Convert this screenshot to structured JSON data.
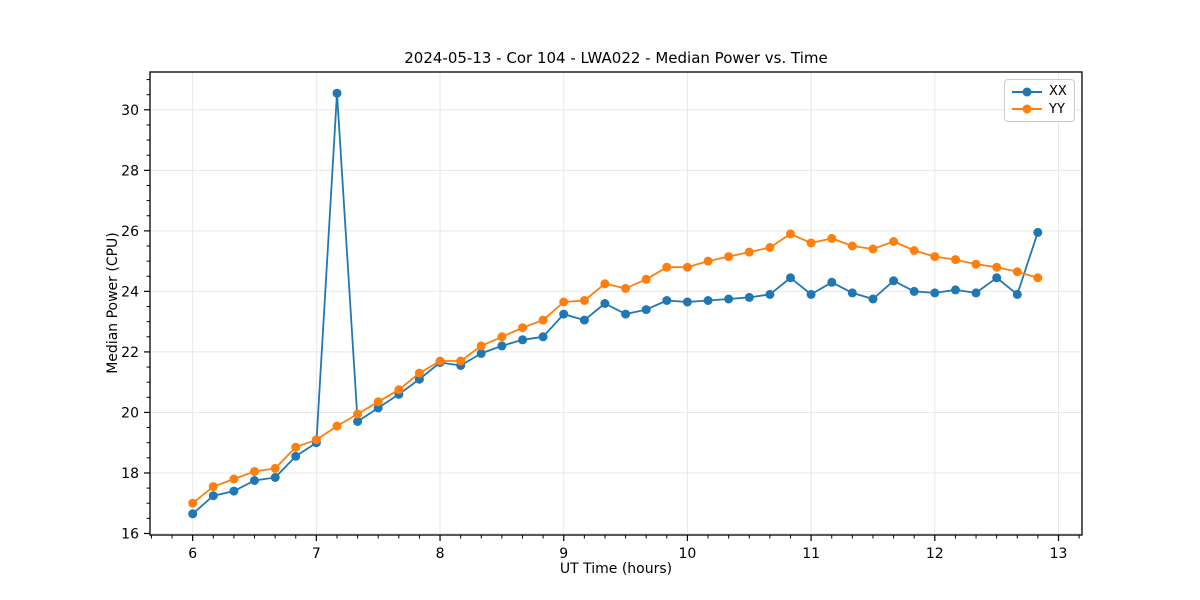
{
  "chart_data": {
    "type": "line",
    "title": "2024-05-13 - Cor 104 - LWA022 - Median Power vs. Time",
    "xlabel": "UT Time (hours)",
    "ylabel": "Median Power (CPU)",
    "xlim": [
      5.655,
      13.19
    ],
    "ylim": [
      15.95,
      31.25
    ],
    "x_major_ticks": [
      6,
      7,
      8,
      9,
      10,
      11,
      12,
      13
    ],
    "y_major_ticks": [
      16,
      18,
      20,
      22,
      24,
      26,
      28,
      30
    ],
    "x_minor_step_hours": 0.16667,
    "y_minor_step": 0.5,
    "grid": "major-only",
    "grid_color": "#e8e8e8",
    "legend_position": "upper-right",
    "x": [
      6.0,
      6.167,
      6.333,
      6.5,
      6.667,
      6.833,
      7.0,
      7.167,
      7.333,
      7.5,
      7.667,
      7.833,
      8.0,
      8.167,
      8.333,
      8.5,
      8.667,
      8.833,
      9.0,
      9.167,
      9.333,
      9.5,
      9.667,
      9.833,
      10.0,
      10.167,
      10.333,
      10.5,
      10.667,
      10.833,
      11.0,
      11.167,
      11.333,
      11.5,
      11.667,
      11.833,
      12.0,
      12.167,
      12.333,
      12.5,
      12.667,
      12.833
    ],
    "series": [
      {
        "name": "XX",
        "color": "#1f77b4",
        "values": [
          16.65,
          17.25,
          17.4,
          17.75,
          17.85,
          18.55,
          19.0,
          30.55,
          19.7,
          20.15,
          20.6,
          21.1,
          21.65,
          21.55,
          21.95,
          22.2,
          22.4,
          22.5,
          23.25,
          23.05,
          23.6,
          23.25,
          23.4,
          23.7,
          23.65,
          23.7,
          23.75,
          23.8,
          23.9,
          24.45,
          23.9,
          24.3,
          23.95,
          23.75,
          24.35,
          24.0,
          23.95,
          24.05,
          23.95,
          24.45,
          23.9,
          25.95
        ]
      },
      {
        "name": "YY",
        "color": "#ff7f0e",
        "values": [
          17.0,
          17.55,
          17.8,
          18.05,
          18.15,
          18.85,
          19.1,
          19.55,
          19.95,
          20.35,
          20.75,
          21.3,
          21.7,
          21.7,
          22.2,
          22.5,
          22.8,
          23.05,
          23.65,
          23.7,
          24.25,
          24.1,
          24.4,
          24.8,
          24.8,
          25.0,
          25.15,
          25.3,
          25.45,
          25.9,
          25.6,
          25.75,
          25.5,
          25.4,
          25.65,
          25.35,
          25.15,
          25.05,
          24.9,
          24.8,
          24.65,
          24.45
        ]
      }
    ]
  }
}
